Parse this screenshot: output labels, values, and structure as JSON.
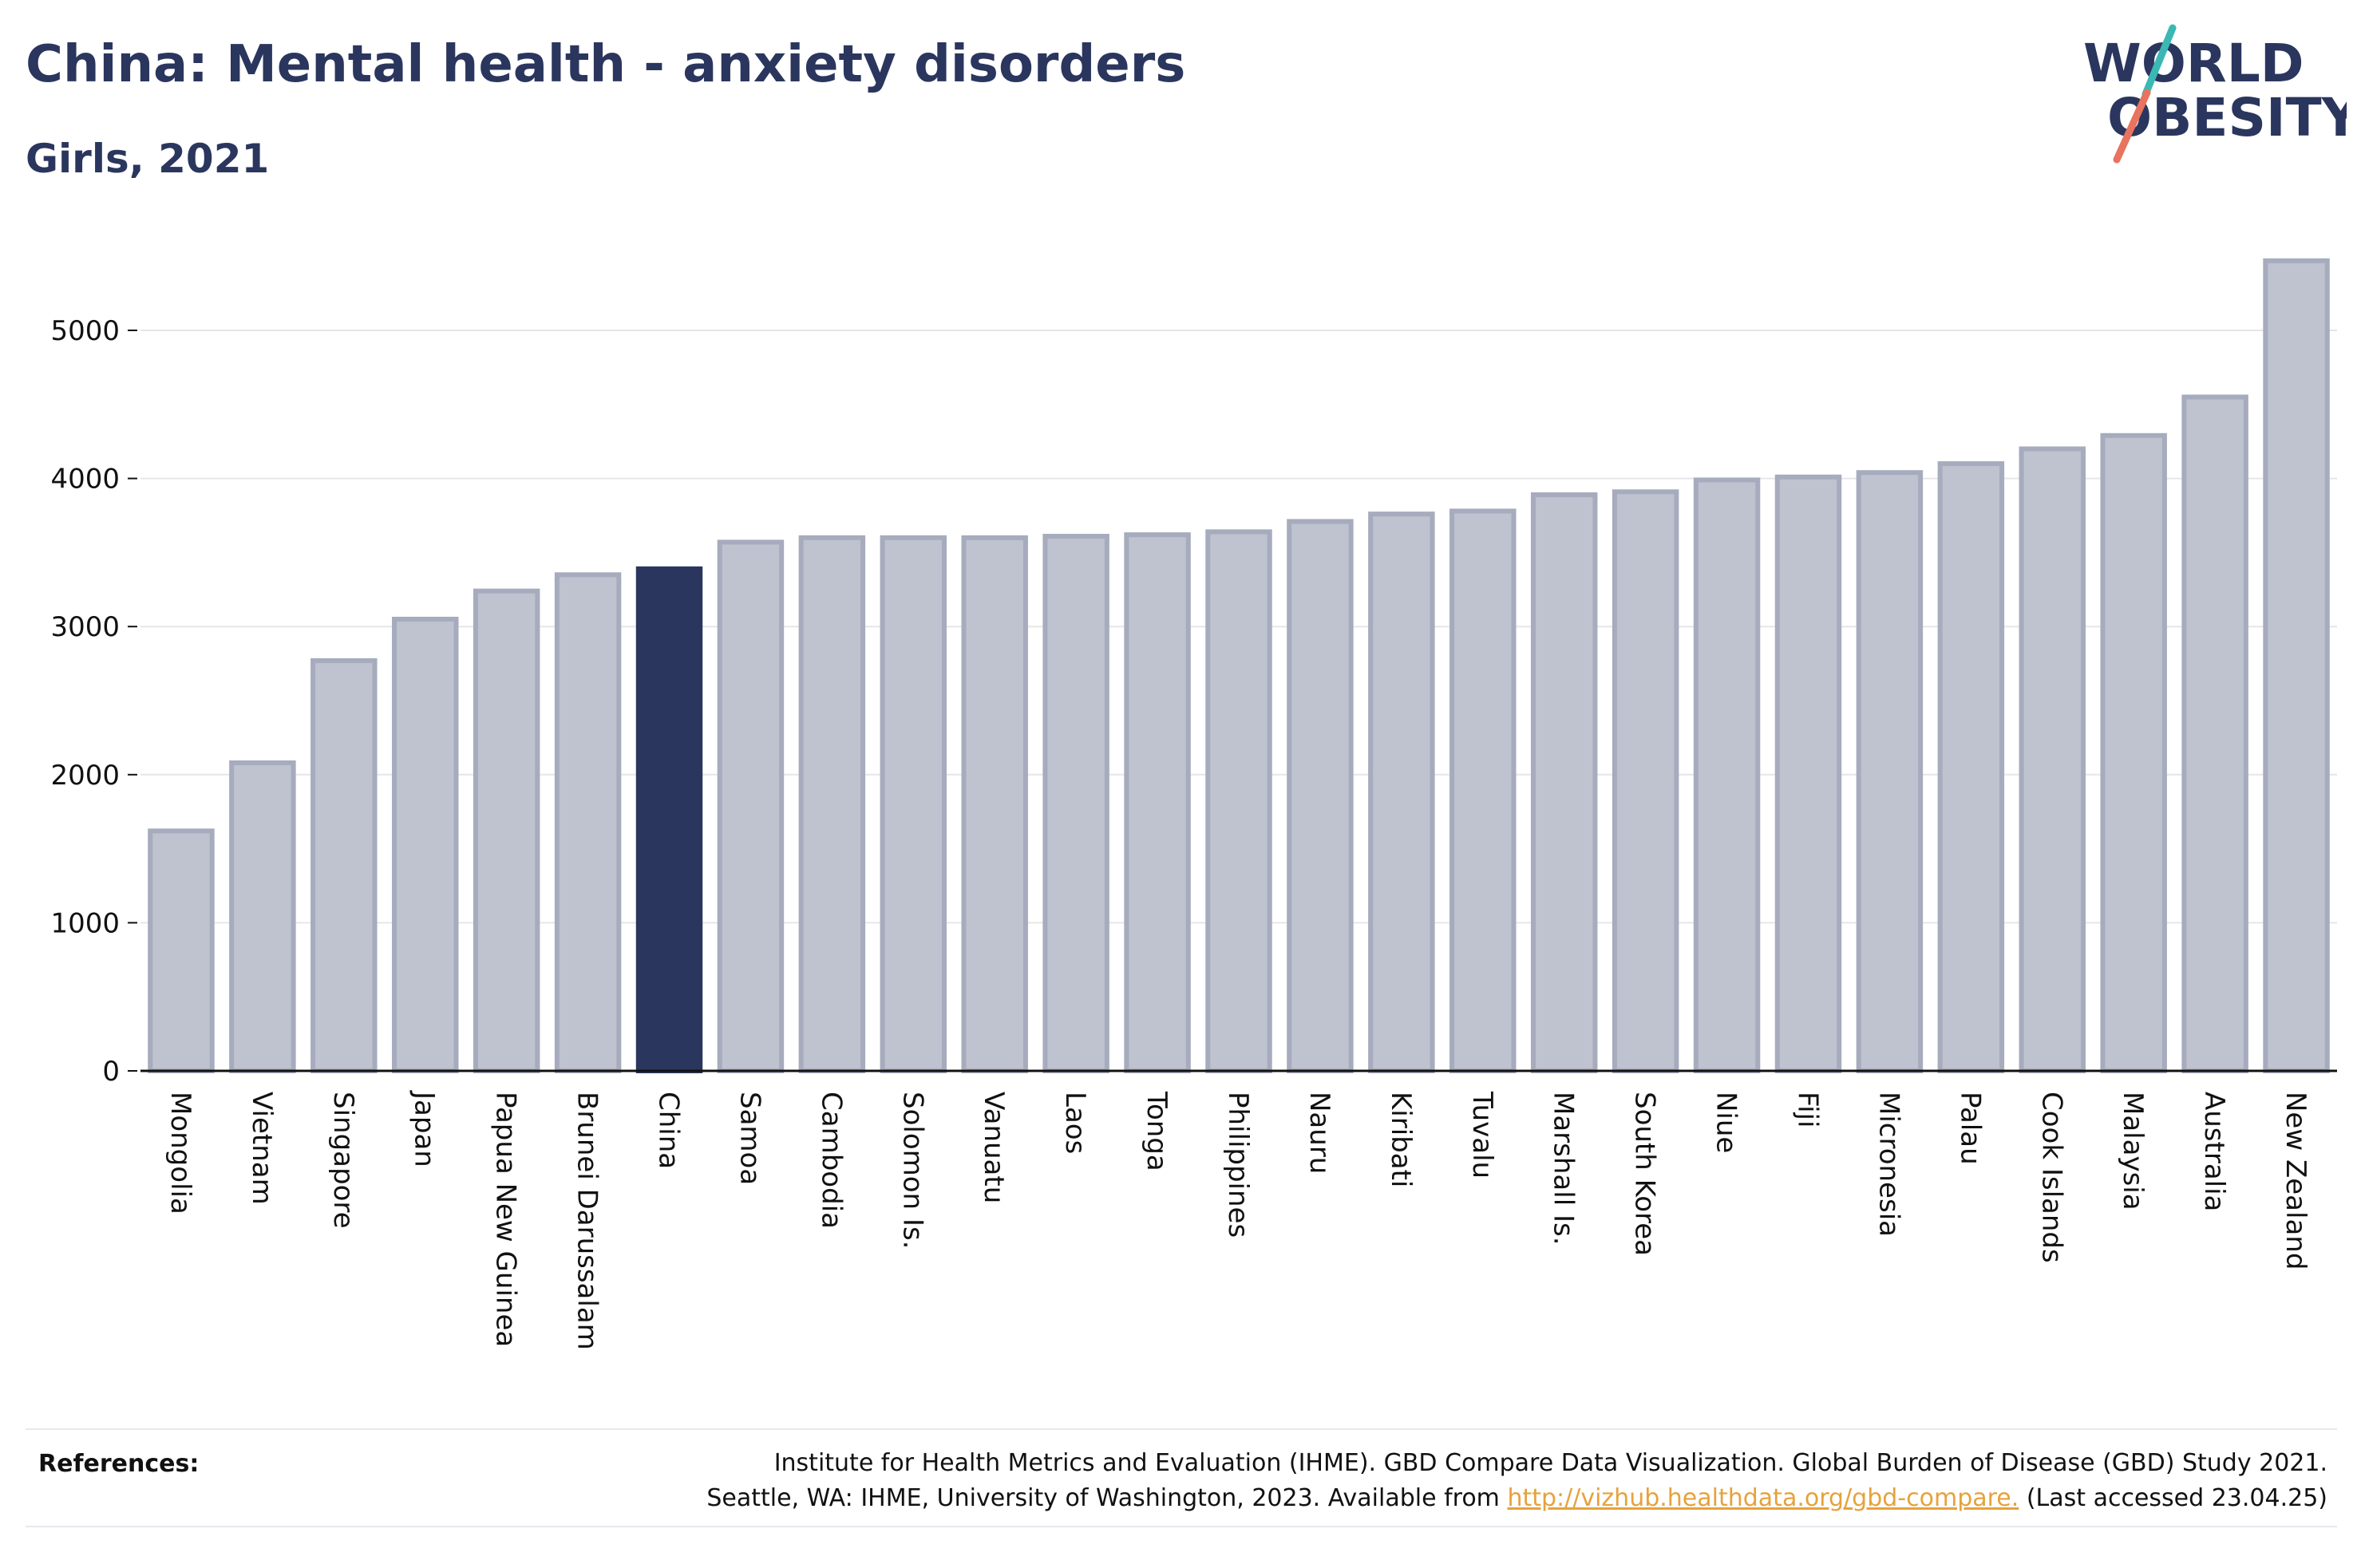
{
  "header": {
    "title": "China: Mental health - anxiety disorders",
    "subtitle": "Girls, 2021"
  },
  "logo": {
    "line1": "WORLD",
    "line2": "OBESITY"
  },
  "colors": {
    "highlight": "#2b365e",
    "bar": "#bfc2cf",
    "bar_border": "#a6abbd",
    "grid": "#e6e6ea",
    "logo_slash_teal": "#3bb8b3",
    "logo_slash_coral": "#e8735f",
    "link": "#e6a23c"
  },
  "chart_data": {
    "type": "bar",
    "title": "China: Mental health - anxiety disorders",
    "subtitle": "Girls, 2021",
    "xlabel": "",
    "ylabel": "",
    "ylim": [
      0,
      5500
    ],
    "yticks": [
      0,
      1000,
      2000,
      3000,
      4000,
      5000
    ],
    "grid": true,
    "highlight": "China",
    "categories": [
      "Mongolia",
      "Vietnam",
      "Singapore",
      "Japan",
      "Papua New Guinea",
      "Brunei Darussalam",
      "China",
      "Samoa",
      "Cambodia",
      "Solomon Is.",
      "Vanuatu",
      "Laos",
      "Tonga",
      "Philippines",
      "Nauru",
      "Kiribati",
      "Tuvalu",
      "Marshall Is.",
      "South Korea",
      "Niue",
      "Fiji",
      "Micronesia",
      "Palau",
      "Cook Islands",
      "Malaysia",
      "Australia",
      "New Zealand"
    ],
    "values": [
      1620,
      2080,
      2770,
      3050,
      3240,
      3350,
      3390,
      3570,
      3600,
      3600,
      3600,
      3610,
      3620,
      3640,
      3710,
      3760,
      3780,
      3890,
      3910,
      3990,
      4010,
      4040,
      4100,
      4200,
      4290,
      4550,
      5470
    ]
  },
  "references": {
    "label": "References:",
    "line1": "Institute for Health Metrics and Evaluation (IHME). GBD Compare Data Visualization. Global Burden of Disease (GBD) Study 2021.",
    "line2_prefix": "Seattle, WA: IHME, University of Washington, 2023. Available from ",
    "link": "http://vizhub.healthdata.org/gbd-compare.",
    "line2_suffix": " (Last accessed 23.04.25)"
  }
}
